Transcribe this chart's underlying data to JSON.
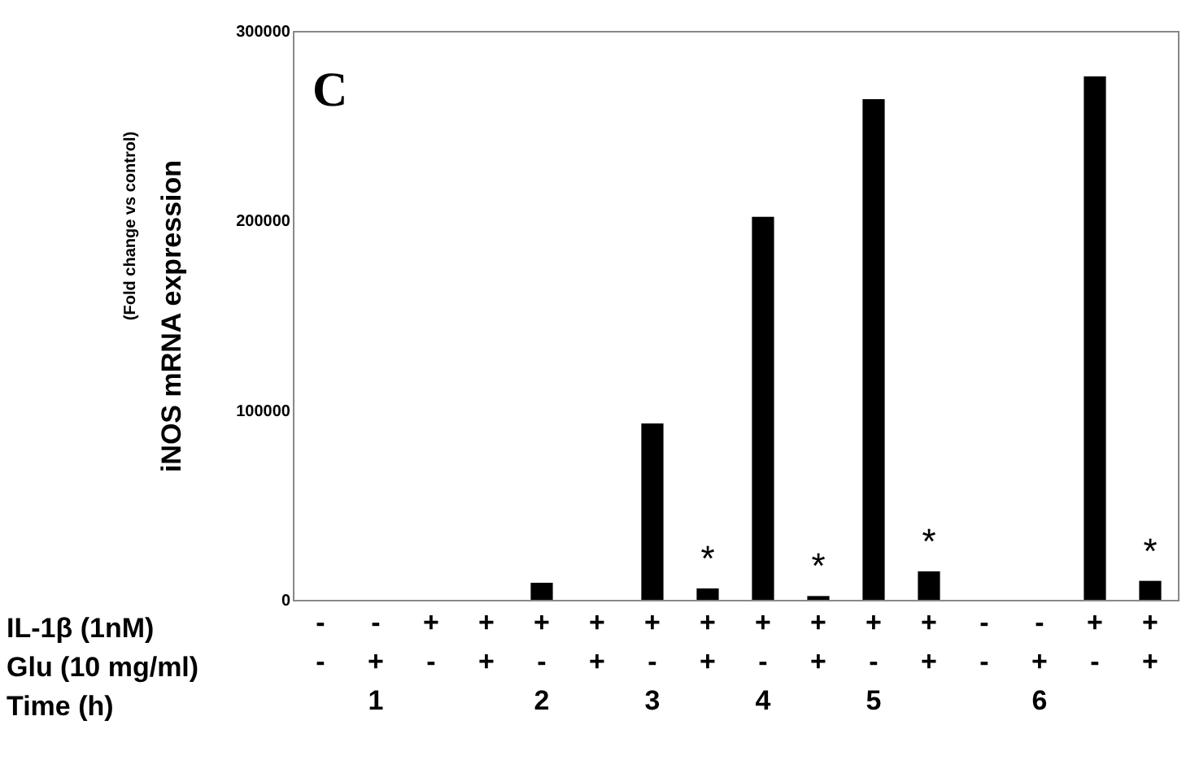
{
  "chart_data": {
    "type": "bar",
    "title": "C",
    "ylabel": "iNOS  mRNA expression",
    "annotations": [
      "(Fold change vs control)",
      "IL-1β (1nM)",
      "Glu (10 mg/ml)",
      "Time (h)"
    ],
    "categories": [
      "-\n-\n",
      "-\n+\n1",
      "+\n-\n",
      "+\n+\n",
      "+\n-\n2",
      "+\n+\n",
      "+\n-\n3",
      "+\n+\n",
      "+\n-\n4",
      "+\n+\n",
      "+\n-\n5",
      "+\n+\n",
      "-\n-\n",
      "-\n+\n6",
      "+\n-\n",
      "+\n+\n"
    ],
    "values": [
      0,
      0,
      0,
      0,
      9000,
      0,
      93000,
      6000,
      202000,
      2000,
      264000,
      15000,
      0,
      0,
      276000,
      10000
    ],
    "value_labels": [
      null,
      null,
      null,
      null,
      null,
      null,
      null,
      "*",
      null,
      "*",
      null,
      "*",
      null,
      null,
      null,
      "*"
    ],
    "color": "#000000",
    "ylim": [
      0,
      300000
    ],
    "yticks": [
      0,
      100000,
      200000,
      300000
    ],
    "grid": false
  }
}
